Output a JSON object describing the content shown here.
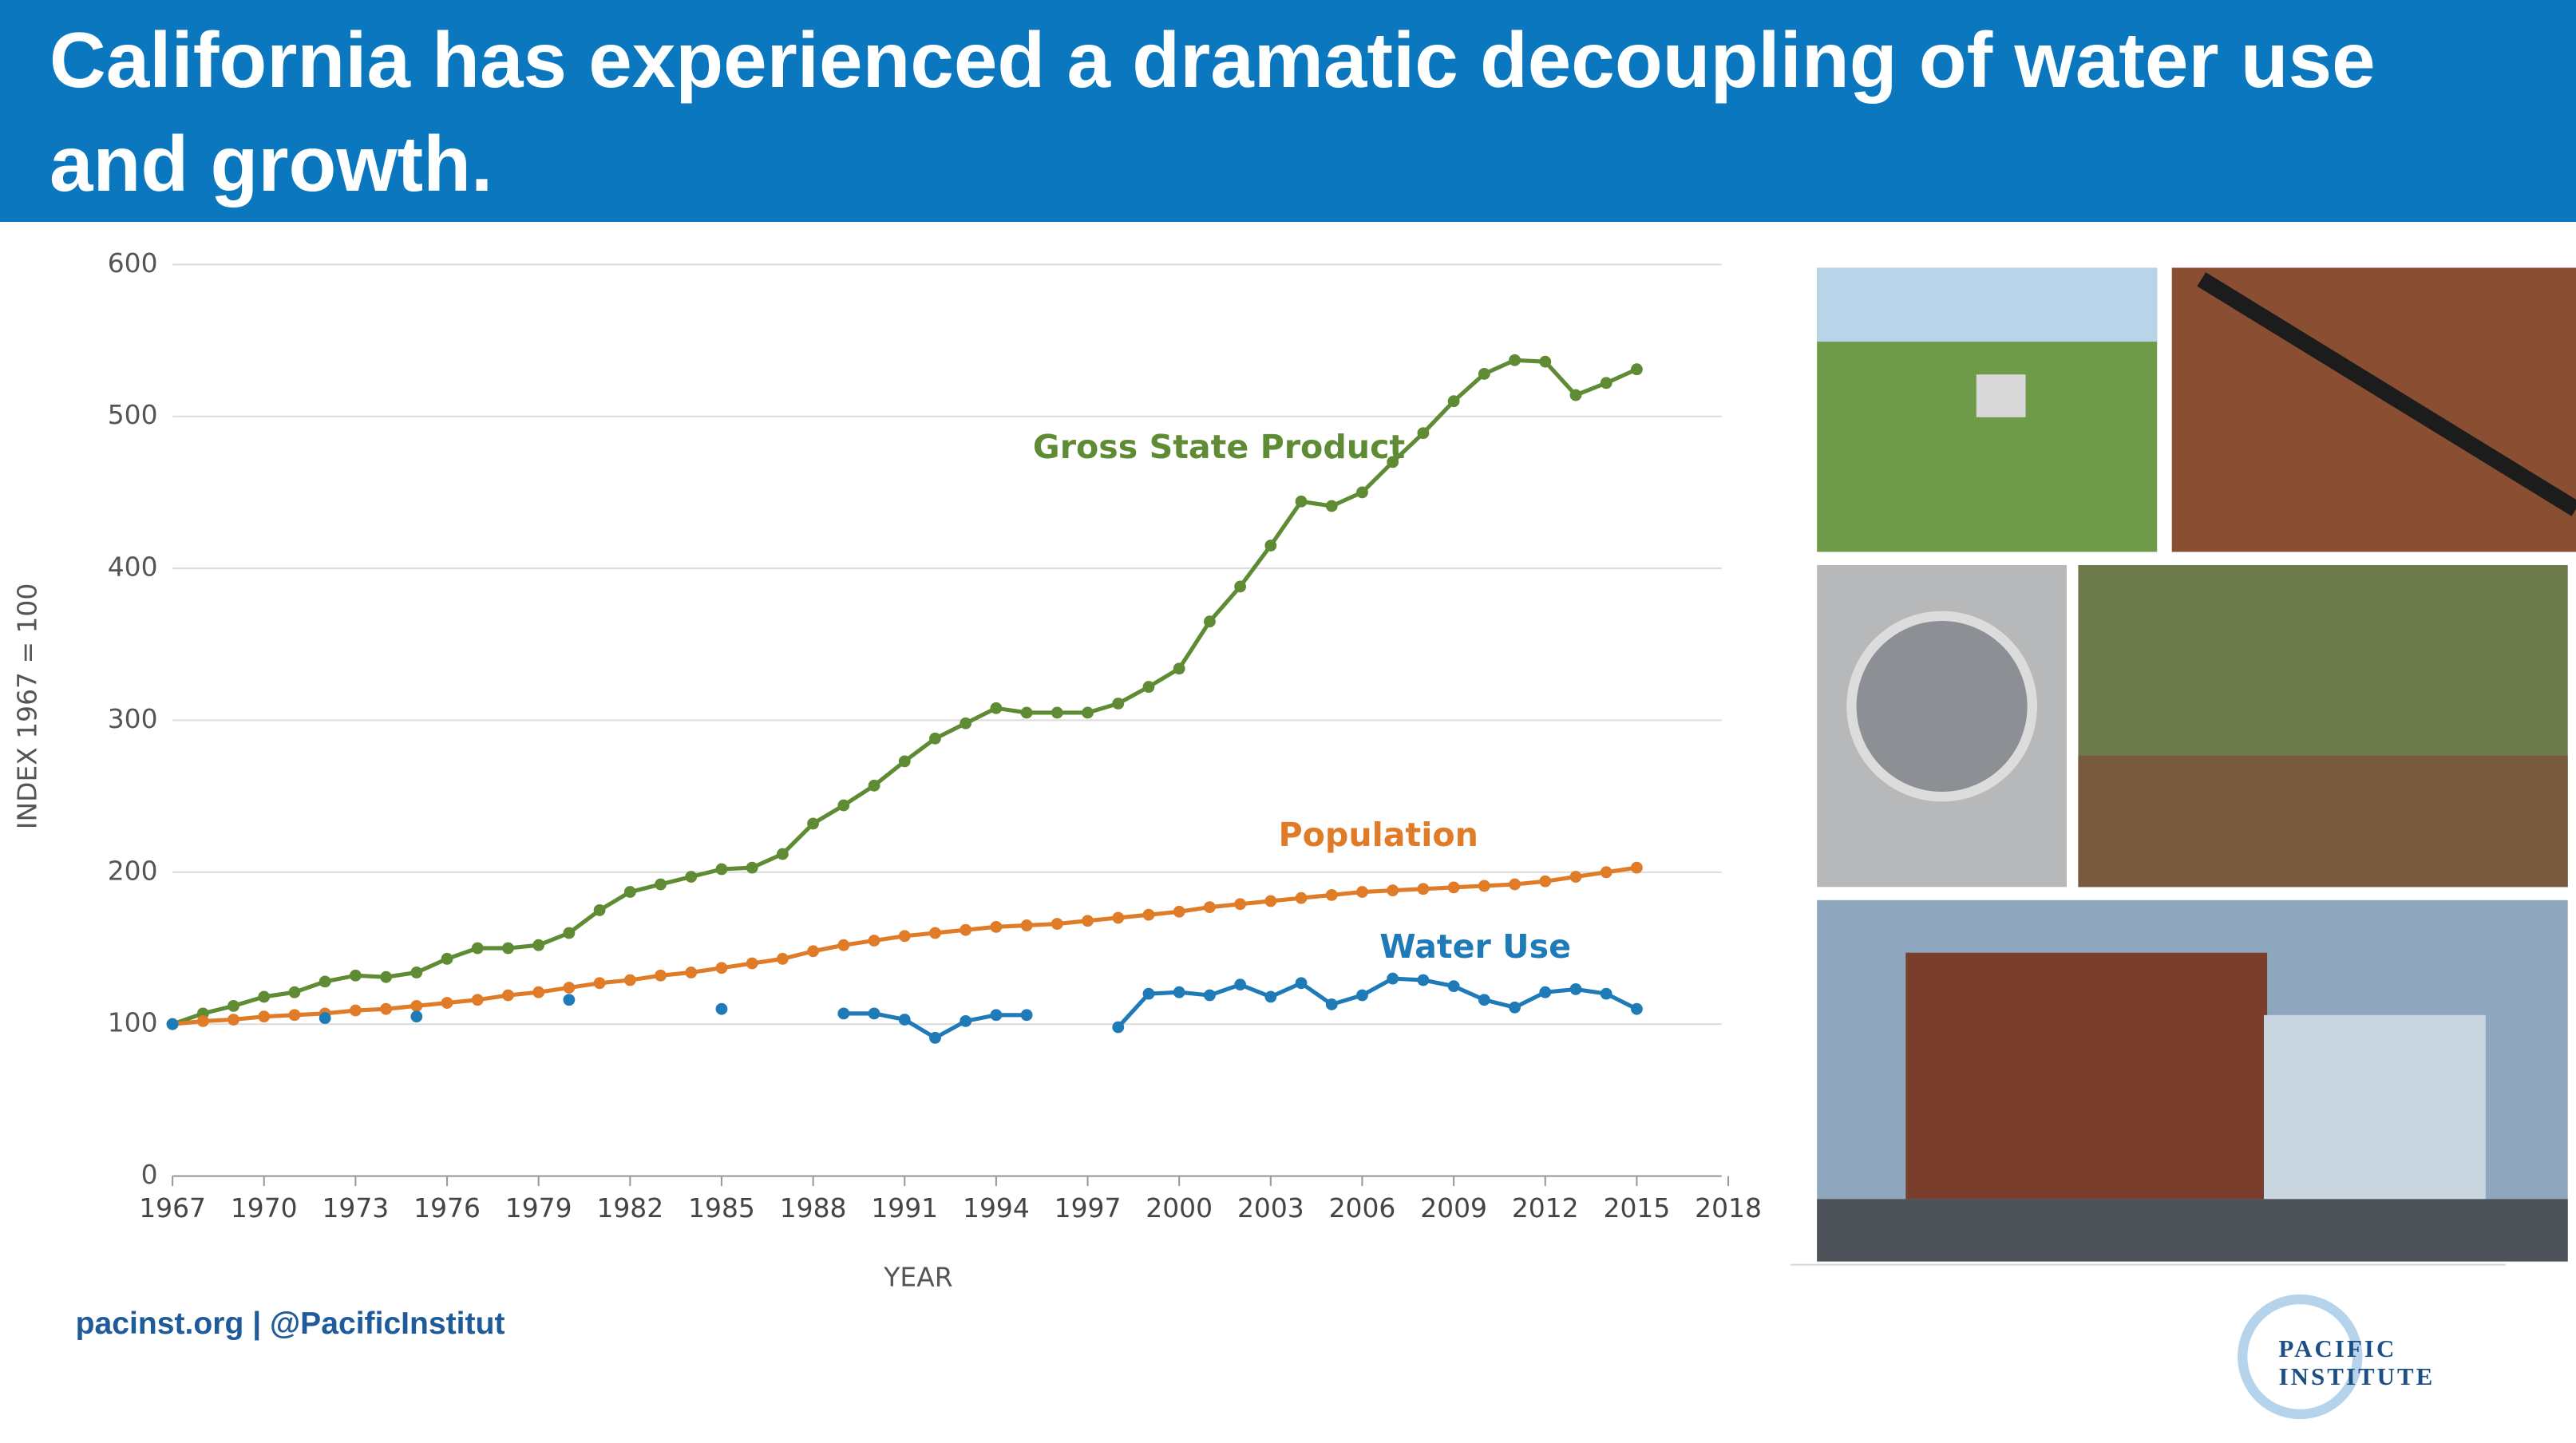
{
  "header": {
    "title": "California has experienced a dramatic decoupling of water use and growth."
  },
  "chart_data": {
    "type": "line",
    "ylabel": "INDEX 1967 = 100",
    "xlabel": "YEAR",
    "x": [
      1967,
      1968,
      1969,
      1970,
      1971,
      1972,
      1973,
      1974,
      1975,
      1976,
      1977,
      1978,
      1979,
      1980,
      1981,
      1982,
      1983,
      1984,
      1985,
      1986,
      1987,
      1988,
      1989,
      1990,
      1991,
      1992,
      1993,
      1994,
      1995,
      1996,
      1997,
      1998,
      1999,
      2000,
      2001,
      2002,
      2003,
      2004,
      2005,
      2006,
      2007,
      2008,
      2009,
      2010,
      2011,
      2012,
      2013,
      2014,
      2015
    ],
    "series": [
      {
        "name": "Gross State Product",
        "color": "#5e8b33",
        "values": [
          100,
          107,
          112,
          118,
          121,
          128,
          132,
          131,
          134,
          143,
          150,
          150,
          152,
          160,
          175,
          187,
          192,
          197,
          202,
          203,
          212,
          232,
          244,
          257,
          273,
          288,
          298,
          308,
          305,
          305,
          305,
          311,
          322,
          334,
          365,
          388,
          415,
          444,
          441,
          450,
          470,
          489,
          510,
          528,
          537,
          536,
          514,
          522,
          531
        ]
      },
      {
        "name": "Population",
        "color": "#e07b27",
        "values": [
          100,
          102,
          103,
          105,
          106,
          107,
          109,
          110,
          112,
          114,
          116,
          119,
          121,
          124,
          127,
          129,
          132,
          134,
          137,
          140,
          143,
          148,
          152,
          155,
          158,
          160,
          162,
          164,
          165,
          166,
          168,
          170,
          172,
          174,
          177,
          179,
          181,
          183,
          185,
          187,
          188,
          189,
          190,
          191,
          192,
          194,
          197,
          200,
          203
        ]
      },
      {
        "name": "Water Use",
        "color": "#1f7ab8",
        "values": [
          100,
          null,
          null,
          null,
          null,
          104,
          null,
          null,
          105,
          null,
          null,
          null,
          null,
          116,
          null,
          null,
          null,
          null,
          110,
          null,
          null,
          null,
          107,
          107,
          103,
          91,
          102,
          106,
          106,
          null,
          null,
          98,
          120,
          121,
          119,
          126,
          118,
          127,
          113,
          119,
          130,
          129,
          125,
          116,
          111,
          121,
          123,
          120,
          110
        ]
      }
    ],
    "xlim": [
      1967,
      2018
    ],
    "xticks": [
      1967,
      1970,
      1973,
      1976,
      1979,
      1982,
      1985,
      1988,
      1991,
      1994,
      1997,
      2000,
      2003,
      2006,
      2009,
      2012,
      2015,
      2018
    ],
    "ylim": [
      0,
      600
    ],
    "yticks": [
      0,
      100,
      200,
      300,
      400,
      500,
      600
    ],
    "grid": true
  },
  "footer": {
    "links": "pacinst.org | @PacificInstitut"
  },
  "logo": {
    "lines": [
      "PACIFIC",
      "INSTITUTE"
    ]
  }
}
